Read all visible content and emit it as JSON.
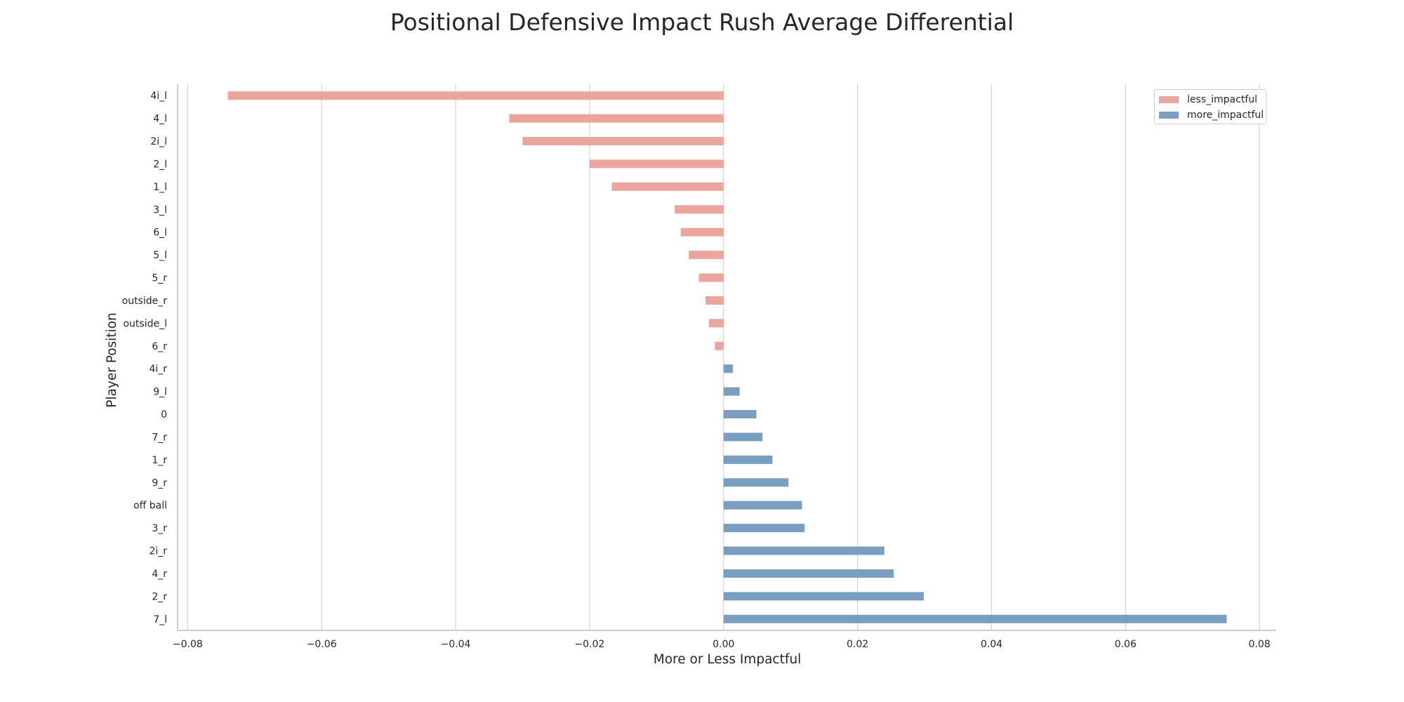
{
  "chart_data": {
    "type": "bar",
    "orientation": "horizontal",
    "title": "Positional Defensive Impact Rush Average Differential",
    "xlabel": "More or Less Impactful",
    "ylabel": "Player Position",
    "xlim": [
      -0.0815,
      0.0825
    ],
    "xticks": [
      -0.08,
      -0.06,
      -0.04,
      -0.02,
      0.0,
      0.02,
      0.04,
      0.06,
      0.08
    ],
    "xtick_labels": [
      "−0.08",
      "−0.06",
      "−0.04",
      "−0.02",
      "0.00",
      "0.02",
      "0.04",
      "0.06",
      "0.08"
    ],
    "grid": "vertical",
    "legend_position": "top-right",
    "colors": {
      "less_impactful": "#eba59d",
      "more_impactful": "#7a9ebf",
      "grid": "#d4d4d4",
      "axis": "#bfbfbf"
    },
    "series": [
      {
        "name": "less_impactful",
        "color": "#eba59d"
      },
      {
        "name": "more_impactful",
        "color": "#7a9ebf"
      }
    ],
    "categories": [
      "4i_l",
      "4_l",
      "2i_l",
      "2_l",
      "1_l",
      "3_l",
      "6_l",
      "5_l",
      "5_r",
      "outside_r",
      "outside_l",
      "6_r",
      "4i_r",
      "9_l",
      "0",
      "7_r",
      "1_r",
      "9_r",
      "off ball",
      "3_r",
      "2i_r",
      "4_r",
      "2_r",
      "7_l"
    ],
    "values": [
      -0.074,
      -0.032,
      -0.03,
      -0.02,
      -0.0167,
      -0.0073,
      -0.0064,
      -0.0052,
      -0.0037,
      -0.0027,
      -0.0022,
      -0.0013,
      0.0014,
      0.0024,
      0.0049,
      0.0058,
      0.0073,
      0.0097,
      0.0117,
      0.0121,
      0.024,
      0.0254,
      0.0299,
      0.0751
    ],
    "series_of_bar": [
      "less_impactful",
      "less_impactful",
      "less_impactful",
      "less_impactful",
      "less_impactful",
      "less_impactful",
      "less_impactful",
      "less_impactful",
      "less_impactful",
      "less_impactful",
      "less_impactful",
      "less_impactful",
      "more_impactful",
      "more_impactful",
      "more_impactful",
      "more_impactful",
      "more_impactful",
      "more_impactful",
      "more_impactful",
      "more_impactful",
      "more_impactful",
      "more_impactful",
      "more_impactful",
      "more_impactful"
    ]
  }
}
